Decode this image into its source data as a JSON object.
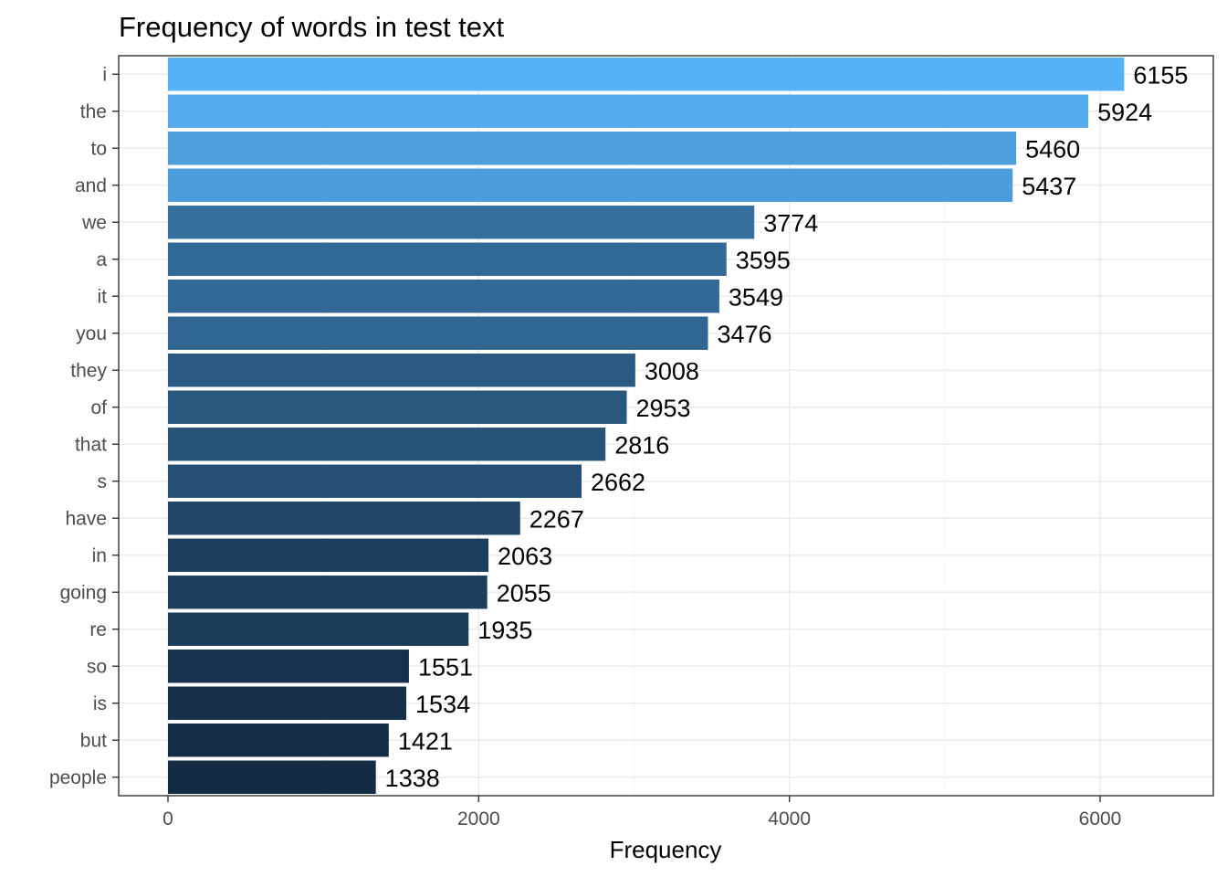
{
  "chart_data": {
    "type": "bar",
    "orientation": "horizontal",
    "title": "Frequency of words in test text",
    "xlabel": "Frequency",
    "ylabel": "",
    "categories": [
      "i",
      "the",
      "to",
      "and",
      "we",
      "a",
      "it",
      "you",
      "they",
      "of",
      "that",
      "s",
      "have",
      "in",
      "going",
      "re",
      "so",
      "is",
      "but",
      "people"
    ],
    "values": [
      6155,
      5924,
      5460,
      5437,
      3774,
      3595,
      3549,
      3476,
      3008,
      2953,
      2816,
      2662,
      2267,
      2063,
      2055,
      1935,
      1551,
      1534,
      1421,
      1338
    ],
    "xlim": [
      -310,
      6630
    ],
    "xticks": [
      0,
      2000,
      4000,
      6000
    ],
    "xtick_labels": [
      "0",
      "2000",
      "4000",
      "6000"
    ],
    "grid": true,
    "legend": "none",
    "colors": {
      "low": "#132b43",
      "high": "#56b1f7",
      "value_min": 1338,
      "value_max": 6155,
      "panel_border": "#333333",
      "grid": "#ebebeb",
      "tick_label": "#4d4d4d"
    }
  }
}
